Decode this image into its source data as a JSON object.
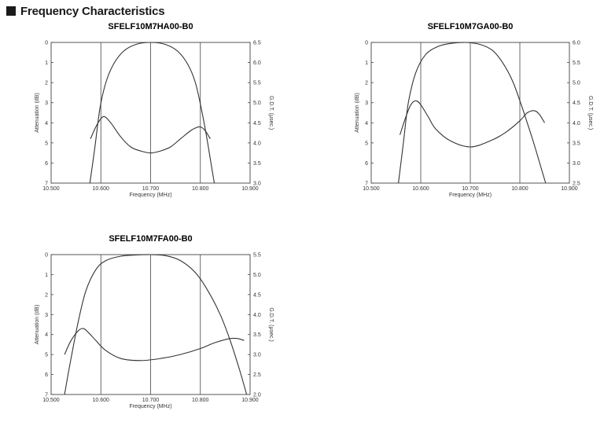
{
  "page_heading": "Frequency Characteristics",
  "chart_data": [
    {
      "type": "line",
      "title": "SFELF10M7HA00-B0",
      "xlabel": "Frequency (MHz)",
      "ylabel": "Attenuation (dB)",
      "y2label": "G.D.T. (μsec.)",
      "xlim": [
        10.5,
        10.9
      ],
      "ylim": [
        0,
        7
      ],
      "y2lim": [
        3.0,
        6.5
      ],
      "y_inverted": true,
      "grid": "x-only",
      "x_ticks": [
        "10.500",
        "10.600",
        "10.700",
        "10.800",
        "10.900"
      ],
      "y_ticks": [
        "0",
        "1",
        "2",
        "3",
        "4",
        "5",
        "6",
        "7"
      ],
      "y2_ticks": [
        "6.5",
        "6.0",
        "5.5",
        "5.0",
        "4.5",
        "4.0",
        "3.5",
        "3.0"
      ],
      "series": [
        {
          "axis": "left",
          "x": [
            10.578,
            10.588,
            10.598,
            10.61,
            10.625,
            10.645,
            10.67,
            10.7,
            10.73,
            10.755,
            10.775,
            10.79,
            10.802,
            10.812,
            10.82,
            10.828
          ],
          "y": [
            7.0,
            5.2,
            3.3,
            2.0,
            1.1,
            0.45,
            0.1,
            0.0,
            0.1,
            0.45,
            1.1,
            2.0,
            3.3,
            4.6,
            5.8,
            7.0
          ]
        },
        {
          "axis": "right",
          "x": [
            10.579,
            10.59,
            10.6,
            10.608,
            10.62,
            10.64,
            10.66,
            10.68,
            10.7,
            10.72,
            10.74,
            10.76,
            10.78,
            10.79,
            10.8,
            10.81,
            10.82
          ],
          "y": [
            4.1,
            4.4,
            4.6,
            4.65,
            4.5,
            4.15,
            3.9,
            3.8,
            3.75,
            3.8,
            3.9,
            4.1,
            4.3,
            4.37,
            4.4,
            4.3,
            4.1
          ]
        }
      ]
    },
    {
      "type": "line",
      "title": "SFELF10M7GA00-B0",
      "xlabel": "Frequency (MHz)",
      "ylabel": "Attenuation (dB)",
      "y2label": "G.D.T. (μsec.)",
      "xlim": [
        10.5,
        10.9
      ],
      "ylim": [
        0,
        7
      ],
      "y2lim": [
        2.5,
        6.0
      ],
      "y_inverted": true,
      "grid": "x-only",
      "x_ticks": [
        "10.500",
        "10.600",
        "10.700",
        "10.800",
        "10.900"
      ],
      "y_ticks": [
        "0",
        "1",
        "2",
        "3",
        "4",
        "5",
        "6",
        "7"
      ],
      "y2_ticks": [
        "6.0",
        "5.5",
        "5.0",
        "4.5",
        "4.0",
        "3.5",
        "3.0",
        "2.5"
      ],
      "series": [
        {
          "axis": "left",
          "x": [
            10.555,
            10.565,
            10.575,
            10.59,
            10.61,
            10.635,
            10.66,
            10.69,
            10.72,
            10.745,
            10.765,
            10.785,
            10.8,
            10.815,
            10.828,
            10.84,
            10.852
          ],
          "y": [
            7.0,
            5.0,
            3.0,
            1.5,
            0.6,
            0.2,
            0.05,
            0.0,
            0.1,
            0.4,
            1.0,
            1.9,
            2.9,
            4.0,
            5.0,
            6.0,
            7.0
          ]
        },
        {
          "axis": "right",
          "x": [
            10.558,
            10.57,
            10.58,
            10.59,
            10.6,
            10.615,
            10.63,
            10.66,
            10.7,
            10.74,
            10.77,
            10.8,
            10.815,
            10.83,
            10.84,
            10.85
          ],
          "y": [
            3.7,
            4.15,
            4.45,
            4.55,
            4.45,
            4.15,
            3.85,
            3.55,
            3.4,
            3.55,
            3.75,
            4.05,
            4.25,
            4.3,
            4.2,
            4.0
          ]
        }
      ]
    },
    {
      "type": "line",
      "title": "SFELF10M7FA00-B0",
      "xlabel": "Frequency (MHz)",
      "ylabel": "Attenuation (dB)",
      "y2label": "G.D.T. (μsec.)",
      "xlim": [
        10.5,
        10.9
      ],
      "ylim": [
        0,
        7
      ],
      "y2lim": [
        2.0,
        5.5
      ],
      "y_inverted": true,
      "grid": "x-only",
      "x_ticks": [
        "10.500",
        "10.600",
        "10.700",
        "10.800",
        "10.900"
      ],
      "y_ticks": [
        "0",
        "1",
        "2",
        "3",
        "4",
        "5",
        "6",
        "7"
      ],
      "y2_ticks": [
        "5.5",
        "5.0",
        "4.5",
        "4.0",
        "3.5",
        "3.0",
        "2.5",
        "2.0"
      ],
      "series": [
        {
          "axis": "left",
          "x": [
            10.527,
            10.54,
            10.555,
            10.57,
            10.59,
            10.61,
            10.64,
            10.67,
            10.7,
            10.73,
            10.76,
            10.79,
            10.815,
            10.84,
            10.86,
            10.878,
            10.893
          ],
          "y": [
            7.0,
            5.2,
            3.3,
            1.8,
            0.75,
            0.3,
            0.08,
            0.02,
            0.0,
            0.05,
            0.3,
            0.9,
            1.8,
            3.0,
            4.3,
            5.7,
            7.0
          ]
        },
        {
          "axis": "right",
          "x": [
            10.527,
            10.54,
            10.555,
            10.565,
            10.575,
            10.59,
            10.61,
            10.64,
            10.68,
            10.72,
            10.76,
            10.8,
            10.83,
            10.86,
            10.875,
            10.888
          ],
          "y": [
            3.0,
            3.35,
            3.6,
            3.65,
            3.55,
            3.35,
            3.1,
            2.9,
            2.85,
            2.9,
            3.0,
            3.15,
            3.3,
            3.4,
            3.4,
            3.35
          ]
        }
      ]
    }
  ]
}
